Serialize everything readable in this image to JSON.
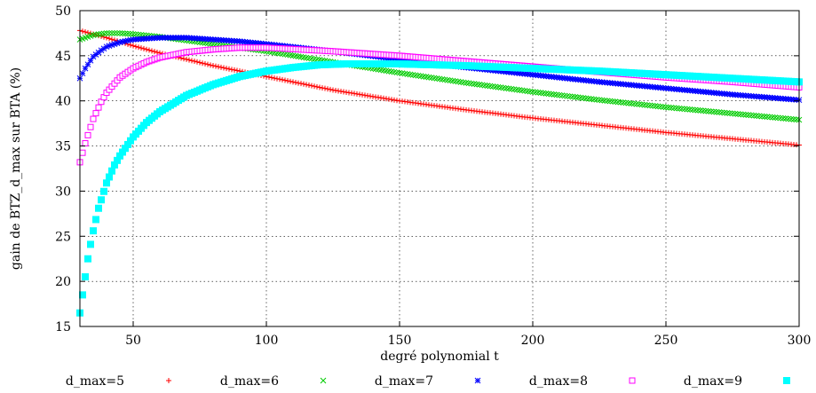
{
  "chart_data": {
    "type": "scatter",
    "title": "",
    "xlabel": "degré polynomial t",
    "ylabel": "gain de BTZ_d_max sur BTA (%)",
    "xlim": [
      30,
      300
    ],
    "ylim": [
      15,
      50
    ],
    "xticks": [
      50,
      100,
      150,
      200,
      250,
      300
    ],
    "yticks": [
      15,
      20,
      25,
      30,
      35,
      40,
      45,
      50
    ],
    "grid": true,
    "legend": "bottom",
    "series": [
      {
        "name": "d_max=5",
        "color": "#ff0000",
        "marker": "plus",
        "x": [
          30,
          40,
          50,
          60,
          70,
          80,
          90,
          100,
          125,
          150,
          175,
          200,
          225,
          250,
          275,
          300
        ],
        "y": [
          47.8,
          47.0,
          46.1,
          45.3,
          44.6,
          43.9,
          43.3,
          42.7,
          41.2,
          40.0,
          39.0,
          38.1,
          37.3,
          36.5,
          35.8,
          35.1
        ]
      },
      {
        "name": "d_max=6",
        "color": "#00cc00",
        "marker": "x",
        "x": [
          30,
          35,
          40,
          45,
          50,
          60,
          70,
          80,
          90,
          100,
          125,
          150,
          175,
          200,
          225,
          250,
          275,
          300
        ],
        "y": [
          46.8,
          47.3,
          47.5,
          47.5,
          47.4,
          47.1,
          46.7,
          46.3,
          45.9,
          45.5,
          44.3,
          43.1,
          42.0,
          41.0,
          40.1,
          39.3,
          38.6,
          37.9
        ]
      },
      {
        "name": "d_max=7",
        "color": "#0000ff",
        "marker": "star",
        "x": [
          30,
          32,
          35,
          38,
          40,
          45,
          50,
          55,
          60,
          70,
          80,
          90,
          100,
          125,
          150,
          175,
          200,
          225,
          250,
          275,
          300
        ],
        "y": [
          42.5,
          43.6,
          44.9,
          45.6,
          46.0,
          46.5,
          46.8,
          46.9,
          47.0,
          47.0,
          46.8,
          46.6,
          46.3,
          45.5,
          44.6,
          43.7,
          42.9,
          42.1,
          41.4,
          40.7,
          40.1
        ]
      },
      {
        "name": "d_max=8",
        "color": "#ff00ff",
        "marker": "square",
        "x": [
          30,
          32,
          35,
          38,
          40,
          45,
          50,
          55,
          60,
          70,
          80,
          90,
          100,
          125,
          150,
          175,
          200,
          225,
          250,
          275,
          300
        ],
        "y": [
          33.2,
          35.3,
          38.0,
          39.9,
          40.9,
          42.6,
          43.6,
          44.3,
          44.8,
          45.4,
          45.7,
          45.9,
          45.9,
          45.5,
          45.0,
          44.4,
          43.8,
          43.2,
          42.6,
          42.1,
          41.5
        ]
      },
      {
        "name": "d_max=9",
        "color": "#00ffff",
        "marker": "filled-square",
        "x": [
          30,
          31,
          32,
          33,
          34,
          35,
          37,
          40,
          43,
          45,
          50,
          55,
          60,
          70,
          80,
          90,
          100,
          110,
          120,
          130,
          150,
          175,
          200,
          225,
          250,
          275,
          300
        ],
        "y": [
          16.5,
          18.5,
          20.5,
          22.5,
          24.1,
          25.6,
          28.1,
          30.9,
          32.9,
          33.9,
          36.0,
          37.6,
          38.8,
          40.6,
          41.8,
          42.7,
          43.3,
          43.7,
          44.0,
          44.1,
          44.1,
          43.9,
          43.6,
          43.3,
          42.9,
          42.5,
          42.1
        ]
      }
    ]
  }
}
